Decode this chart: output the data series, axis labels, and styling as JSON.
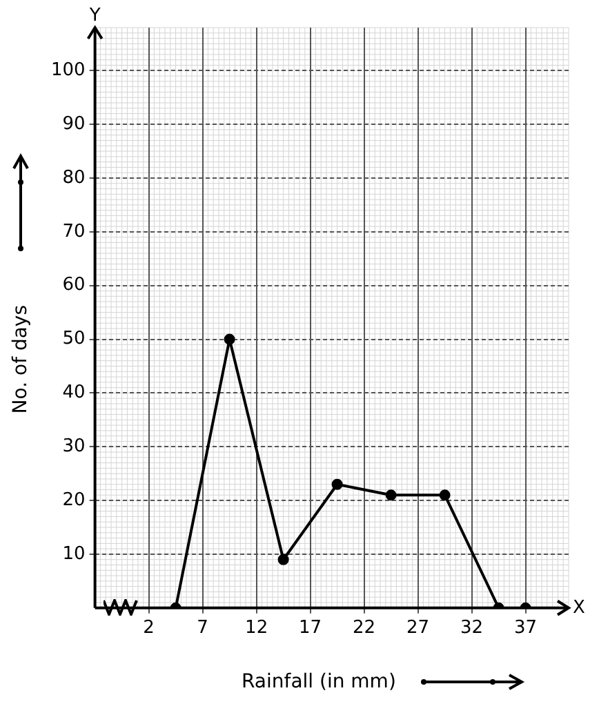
{
  "chart_data": {
    "type": "line",
    "xlabel": "Rainfall (in mm)",
    "ylabel": "No. of days",
    "series": [
      {
        "color": "#000000",
        "x": [
          4.5,
          9.5,
          14.5,
          19.5,
          24.5,
          29.5,
          34.5
        ],
        "values": [
          0,
          50,
          9,
          23,
          21,
          21,
          0
        ]
      },
      {
        "type": "scatter",
        "color": "#000000",
        "x": [
          37
        ],
        "values": [
          0
        ]
      }
    ],
    "xlim": [
      -3,
      41
    ],
    "xticks": [
      2,
      7,
      12,
      17,
      22,
      27,
      32,
      37
    ],
    "ylim": [
      0,
      108
    ],
    "yticks": [
      10,
      20,
      30,
      40,
      50,
      60,
      70,
      80,
      90,
      100
    ],
    "grid": true,
    "marker": "circle",
    "line_style": "solid",
    "annotations": [
      "X",
      "Y"
    ]
  }
}
